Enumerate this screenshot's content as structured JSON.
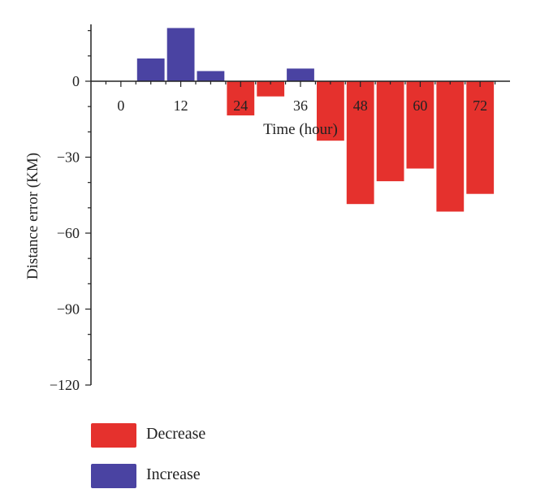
{
  "chart_data": {
    "type": "bar",
    "xlabel": "Time (hour)",
    "ylabel": "Distance error (KM)",
    "xlim": [
      -6,
      78
    ],
    "ylim": [
      -120,
      24
    ],
    "xticks": [
      0,
      12,
      24,
      36,
      48,
      60,
      72
    ],
    "yticks": [
      0,
      -30,
      -60,
      -90,
      -120
    ],
    "x_tick_labels": [
      "0",
      "12",
      "24",
      "36",
      "48",
      "60",
      "72"
    ],
    "y_tick_labels": [
      "0",
      "−30",
      "−60",
      "−90",
      "−120"
    ],
    "bar_width_hours": 5.5,
    "grid": false,
    "series": [
      {
        "name": "Decrease",
        "color": "#e5312d",
        "x": [
          24,
          30,
          42,
          48,
          54,
          60,
          66,
          72
        ],
        "values": [
          -13.5,
          -6,
          -23.5,
          -48.5,
          -39.5,
          -34.5,
          -51.5,
          -44.5
        ]
      },
      {
        "name": "Increase",
        "color": "#4a43a2",
        "x": [
          6,
          12,
          18,
          36
        ],
        "values": [
          9,
          21,
          4,
          5
        ]
      }
    ],
    "legend": {
      "placement": "bottom-left",
      "entries": [
        {
          "label": "Decrease",
          "color": "#e5312d"
        },
        {
          "label": "Increase",
          "color": "#4a43a2"
        }
      ]
    }
  }
}
